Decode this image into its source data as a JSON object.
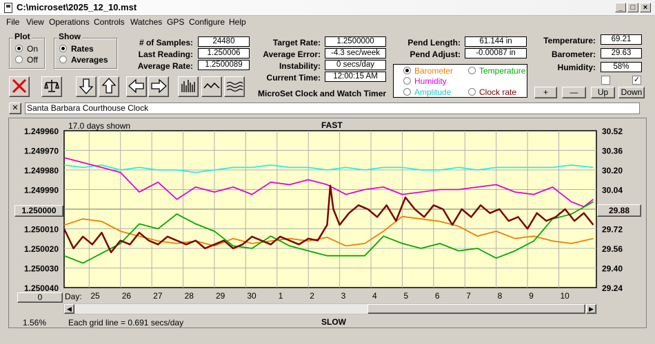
{
  "window": {
    "title": "C:\\microset\\2025_12_10.mst",
    "min": "_",
    "max": "□",
    "close": "×"
  },
  "menu": [
    "File",
    "View",
    "Operations",
    "Controls",
    "Watches",
    "GPS",
    "Configure",
    "Help"
  ],
  "plot": {
    "title": "Plot",
    "on": "On",
    "off": "Off",
    "selected": "On"
  },
  "show": {
    "title": "Show",
    "rates": "Rates",
    "averages": "Averages",
    "selected": "Rates"
  },
  "stats": {
    "samples_label": "# of Samples:",
    "samples": "24480",
    "last_label": "Last Reading:",
    "last": "1.250006",
    "avg_label": "Average Rate:",
    "avg": "1.2500089"
  },
  "rates": {
    "target_label": "Target Rate:",
    "target": "1.2500000",
    "error_label": "Average Error:",
    "error": "-4.3 sec/week",
    "instab_label": "Instability:",
    "instab": "0 secs/day",
    "time_label": "Current Time:",
    "time": "12:00:15 AM"
  },
  "pend": {
    "length_label": "Pend Length:",
    "length": "61.144 in",
    "adjust_label": "Pend Adjust:",
    "adjust": "-0.00087 in"
  },
  "env": {
    "temp_label": "Temperature:",
    "temp": "69.21",
    "baro_label": "Barometer:",
    "baro": "29.63",
    "hum_label": "Humidity:",
    "hum": "58%",
    "check_right": "✓"
  },
  "overlay": {
    "barometer": "Barometer",
    "temperature": "Temperature",
    "humidity": "Humidity",
    "amplitude": "Amplitude",
    "clock_rate": "Clock rate",
    "selected": "Barometer"
  },
  "adjust_buttons": {
    "plus": "+",
    "minus": "—",
    "up": "Up",
    "down": "Down"
  },
  "app_caption": "MicroSet Clock and Watch Timer",
  "clock_name": "Santa Barbara Courthouse Clock",
  "clear_label": "✕",
  "colors": {
    "plot_bg": "#ffffcc",
    "rate": "#7a0000",
    "barometer": "#ee7f00",
    "temperature": "#00aa00",
    "humidity": "#e000e0",
    "amplitude": "#22eeee",
    "clock_rate": "#7a0000"
  },
  "chart": {
    "days_shown": "17.0 days shown",
    "top_label": "FAST",
    "bottom_label": "SLOW",
    "grid_note": "Each grid line = 0.691 secs/day",
    "percent": "1.56%",
    "center_value": "1.250000",
    "right_value": "29.88",
    "offset_value": "0",
    "day_label": "Day:"
  },
  "chart_data": {
    "type": "line",
    "x_label": "Day:",
    "x_ticks": [
      "25",
      "26",
      "27",
      "28",
      "29",
      "30",
      "1",
      "2",
      "3",
      "4",
      "5",
      "6",
      "7",
      "8",
      "9",
      "10"
    ],
    "y_left_ticks": [
      "1.249960",
      "1.249970",
      "1.249980",
      "1.249990",
      "1.250000",
      "1.250010",
      "1.250020",
      "1.250030",
      "1.250040"
    ],
    "y_right_ticks": [
      "30.52",
      "30.36",
      "30.20",
      "30.04",
      "29.88",
      "29.72",
      "29.56",
      "29.40",
      "29.24"
    ],
    "y_left_range": [
      1.24996,
      1.25004
    ],
    "y_right_range": [
      29.24,
      30.52
    ],
    "x_range": [
      24.2,
      41.2
    ],
    "grid": true,
    "series": [
      {
        "name": "Clock rate",
        "color": "#7a0000",
        "x": [
          24.2,
          24.5,
          24.8,
          25.1,
          25.4,
          25.7,
          26.0,
          26.3,
          26.6,
          26.9,
          27.2,
          27.5,
          27.8,
          28.1,
          28.4,
          28.7,
          29.0,
          29.3,
          29.6,
          29.9,
          30.2,
          30.5,
          30.8,
          31.1,
          31.4,
          31.7,
          32.0,
          32.3,
          32.6,
          32.7,
          32.8,
          33.0,
          33.3,
          33.6,
          33.9,
          34.2,
          34.5,
          34.8,
          35.1,
          35.4,
          35.7,
          36.0,
          36.3,
          36.6,
          36.9,
          37.2,
          37.5,
          37.8,
          38.1,
          38.4,
          38.7,
          39.0,
          39.3,
          39.6,
          39.9,
          40.2,
          40.5,
          40.8,
          41.1
        ],
        "y": [
          1.25001,
          1.25002,
          1.250014,
          1.250018,
          1.250012,
          1.250022,
          1.250016,
          1.250018,
          1.250012,
          1.250016,
          1.250018,
          1.250014,
          1.250016,
          1.250018,
          1.250016,
          1.25002,
          1.250018,
          1.250016,
          1.25002,
          1.250018,
          1.250014,
          1.250016,
          1.250018,
          1.250014,
          1.250016,
          1.250018,
          1.250015,
          1.250016,
          1.250008,
          1.249988,
          1.25,
          1.250008,
          1.250002,
          1.249998,
          1.25,
          1.250004,
          1.249998,
          1.250006,
          1.249994,
          1.25,
          1.250004,
          1.249998,
          1.25,
          1.250008,
          1.25,
          1.250004,
          1.249998,
          1.250002,
          1.25,
          1.250006,
          1.250004,
          1.25001,
          1.250002,
          1.250006,
          1.250004,
          1.25,
          1.250006,
          1.250002,
          1.250008
        ]
      },
      {
        "name": "Barometer",
        "color": "#ee7f00",
        "x": [
          24.2,
          24.8,
          25.4,
          26.0,
          26.6,
          27.2,
          27.8,
          28.4,
          29.0,
          29.6,
          30.2,
          30.8,
          31.4,
          32.0,
          32.6,
          33.2,
          33.8,
          34.4,
          35.0,
          35.6,
          36.2,
          36.8,
          37.4,
          38.0,
          38.6,
          39.2,
          39.8,
          40.4,
          41.1
        ],
        "y": [
          29.75,
          29.8,
          29.78,
          29.7,
          29.66,
          29.62,
          29.6,
          29.62,
          29.58,
          29.64,
          29.6,
          29.62,
          29.64,
          29.62,
          29.65,
          29.58,
          29.6,
          29.7,
          29.82,
          29.8,
          29.78,
          29.74,
          29.66,
          29.7,
          29.64,
          29.66,
          29.62,
          29.6,
          29.64
        ]
      },
      {
        "name": "Temperature",
        "color": "#00aa00",
        "x": [
          24.2,
          24.8,
          25.4,
          26.0,
          26.6,
          27.2,
          27.8,
          28.4,
          29.0,
          29.6,
          30.2,
          30.8,
          31.4,
          32.0,
          32.6,
          33.2,
          33.8,
          34.4,
          35.0,
          35.6,
          36.2,
          36.8,
          37.4,
          38.0,
          38.6,
          39.2,
          39.8,
          40.4,
          41.1
        ],
        "y": [
          29.5,
          29.44,
          29.52,
          29.6,
          29.76,
          29.72,
          29.84,
          29.76,
          29.7,
          29.58,
          29.56,
          29.66,
          29.58,
          29.54,
          29.5,
          29.5,
          29.5,
          29.66,
          29.6,
          29.56,
          29.6,
          29.54,
          29.56,
          29.48,
          29.54,
          29.62,
          29.8,
          29.84,
          29.94
        ]
      },
      {
        "name": "Humidity",
        "color": "#e000e0",
        "x": [
          24.2,
          24.8,
          25.4,
          26.0,
          26.6,
          27.2,
          27.8,
          28.4,
          29.0,
          29.6,
          30.2,
          30.8,
          31.4,
          32.0,
          32.6,
          33.2,
          33.8,
          34.4,
          35.0,
          35.6,
          36.2,
          36.8,
          37.4,
          38.0,
          38.6,
          39.2,
          39.8,
          40.4,
          40.8,
          41.1
        ],
        "y": [
          30.3,
          30.26,
          30.22,
          30.18,
          30.02,
          30.1,
          29.96,
          30.06,
          30.02,
          30.06,
          30.0,
          30.1,
          30.08,
          30.12,
          30.08,
          30.0,
          30.04,
          30.06,
          30.0,
          30.02,
          30.04,
          30.04,
          30.06,
          30.08,
          30.02,
          30.0,
          30.06,
          29.94,
          29.9,
          29.96
        ]
      },
      {
        "name": "Amplitude",
        "color": "#22eeee",
        "x": [
          24.2,
          24.8,
          25.4,
          26.0,
          26.6,
          27.2,
          27.8,
          28.4,
          29.0,
          29.6,
          30.2,
          30.8,
          31.4,
          32.0,
          32.6,
          33.2,
          33.8,
          34.4,
          35.0,
          35.6,
          36.2,
          36.8,
          37.4,
          38.0,
          38.6,
          39.2,
          39.8,
          40.4,
          41.1
        ],
        "y": [
          30.24,
          30.22,
          30.24,
          30.2,
          30.22,
          30.2,
          30.2,
          30.18,
          30.2,
          30.22,
          30.22,
          30.24,
          30.22,
          30.22,
          30.2,
          30.22,
          30.2,
          30.22,
          30.22,
          30.2,
          30.2,
          30.22,
          30.2,
          30.22,
          30.22,
          30.22,
          30.22,
          30.24,
          30.22
        ]
      }
    ]
  }
}
